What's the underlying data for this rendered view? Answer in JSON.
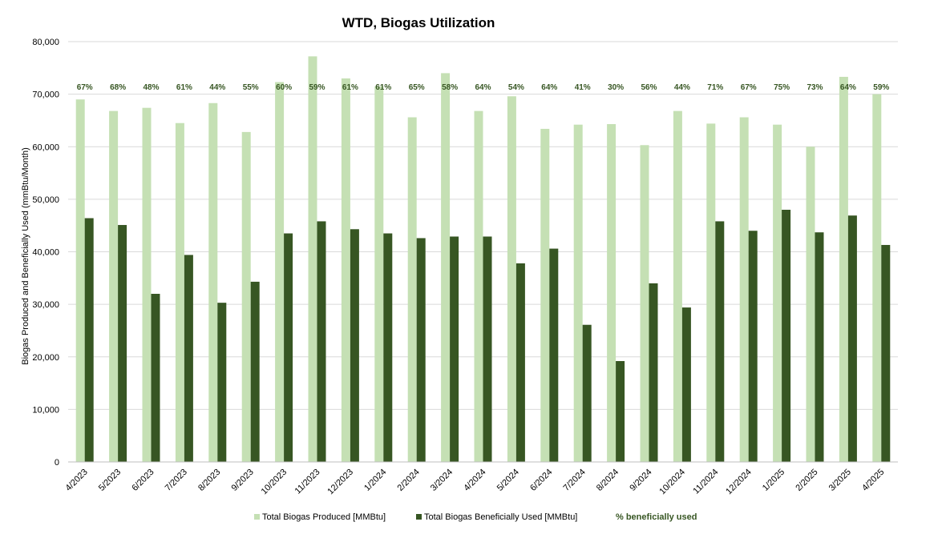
{
  "chart_data": {
    "type": "bar",
    "title": "WTD, Biogas Utilization",
    "ylabel": "Biogas Produced and Beneficially Used (mmBtu/Month)",
    "xlabel": "",
    "ylim": [
      0,
      80000
    ],
    "yticks": [
      0,
      10000,
      20000,
      30000,
      40000,
      50000,
      60000,
      70000,
      80000
    ],
    "ytick_labels": [
      "0",
      "10,000",
      "20,000",
      "30,000",
      "40,000",
      "50,000",
      "60,000",
      "70,000",
      "80,000"
    ],
    "grid": true,
    "legend_position": "bottom",
    "categories": [
      "4/2023",
      "5/2023",
      "6/2023",
      "7/2023",
      "8/2023",
      "9/2023",
      "10/2023",
      "11/2023",
      "12/2023",
      "1/2024",
      "2/2024",
      "3/2024",
      "4/2024",
      "5/2024",
      "6/2024",
      "7/2024",
      "8/2024",
      "9/2024",
      "10/2024",
      "11/2024",
      "12/2024",
      "1/2025",
      "2/2025",
      "3/2025",
      "4/2025"
    ],
    "series": [
      {
        "name": "Total Biogas Produced [MMBtu]",
        "color": "#c5e0b4",
        "values": [
          69000,
          66800,
          67400,
          64500,
          68300,
          62800,
          72300,
          77200,
          73000,
          71500,
          65600,
          74000,
          66800,
          69600,
          63400,
          64200,
          64300,
          60300,
          66800,
          64400,
          65600,
          64200,
          60000,
          73300,
          70000
        ]
      },
      {
        "name": "Total Biogas Beneficially Used [MMBtu]",
        "color": "#375623",
        "values": [
          46400,
          45100,
          32000,
          39400,
          30300,
          34300,
          43500,
          45800,
          44300,
          43500,
          42600,
          42900,
          42900,
          37800,
          40600,
          26100,
          19200,
          34000,
          29400,
          45800,
          44000,
          48000,
          43700,
          46900,
          41300
        ]
      }
    ],
    "percent_series": {
      "name": "% beneficially used",
      "color": "#375623",
      "labels": [
        "67%",
        "68%",
        "48%",
        "61%",
        "44%",
        "55%",
        "60%",
        "59%",
        "61%",
        "61%",
        "65%",
        "58%",
        "64%",
        "54%",
        "64%",
        "41%",
        "30%",
        "56%",
        "44%",
        "71%",
        "67%",
        "75%",
        "73%",
        "64%",
        "59%"
      ]
    }
  }
}
